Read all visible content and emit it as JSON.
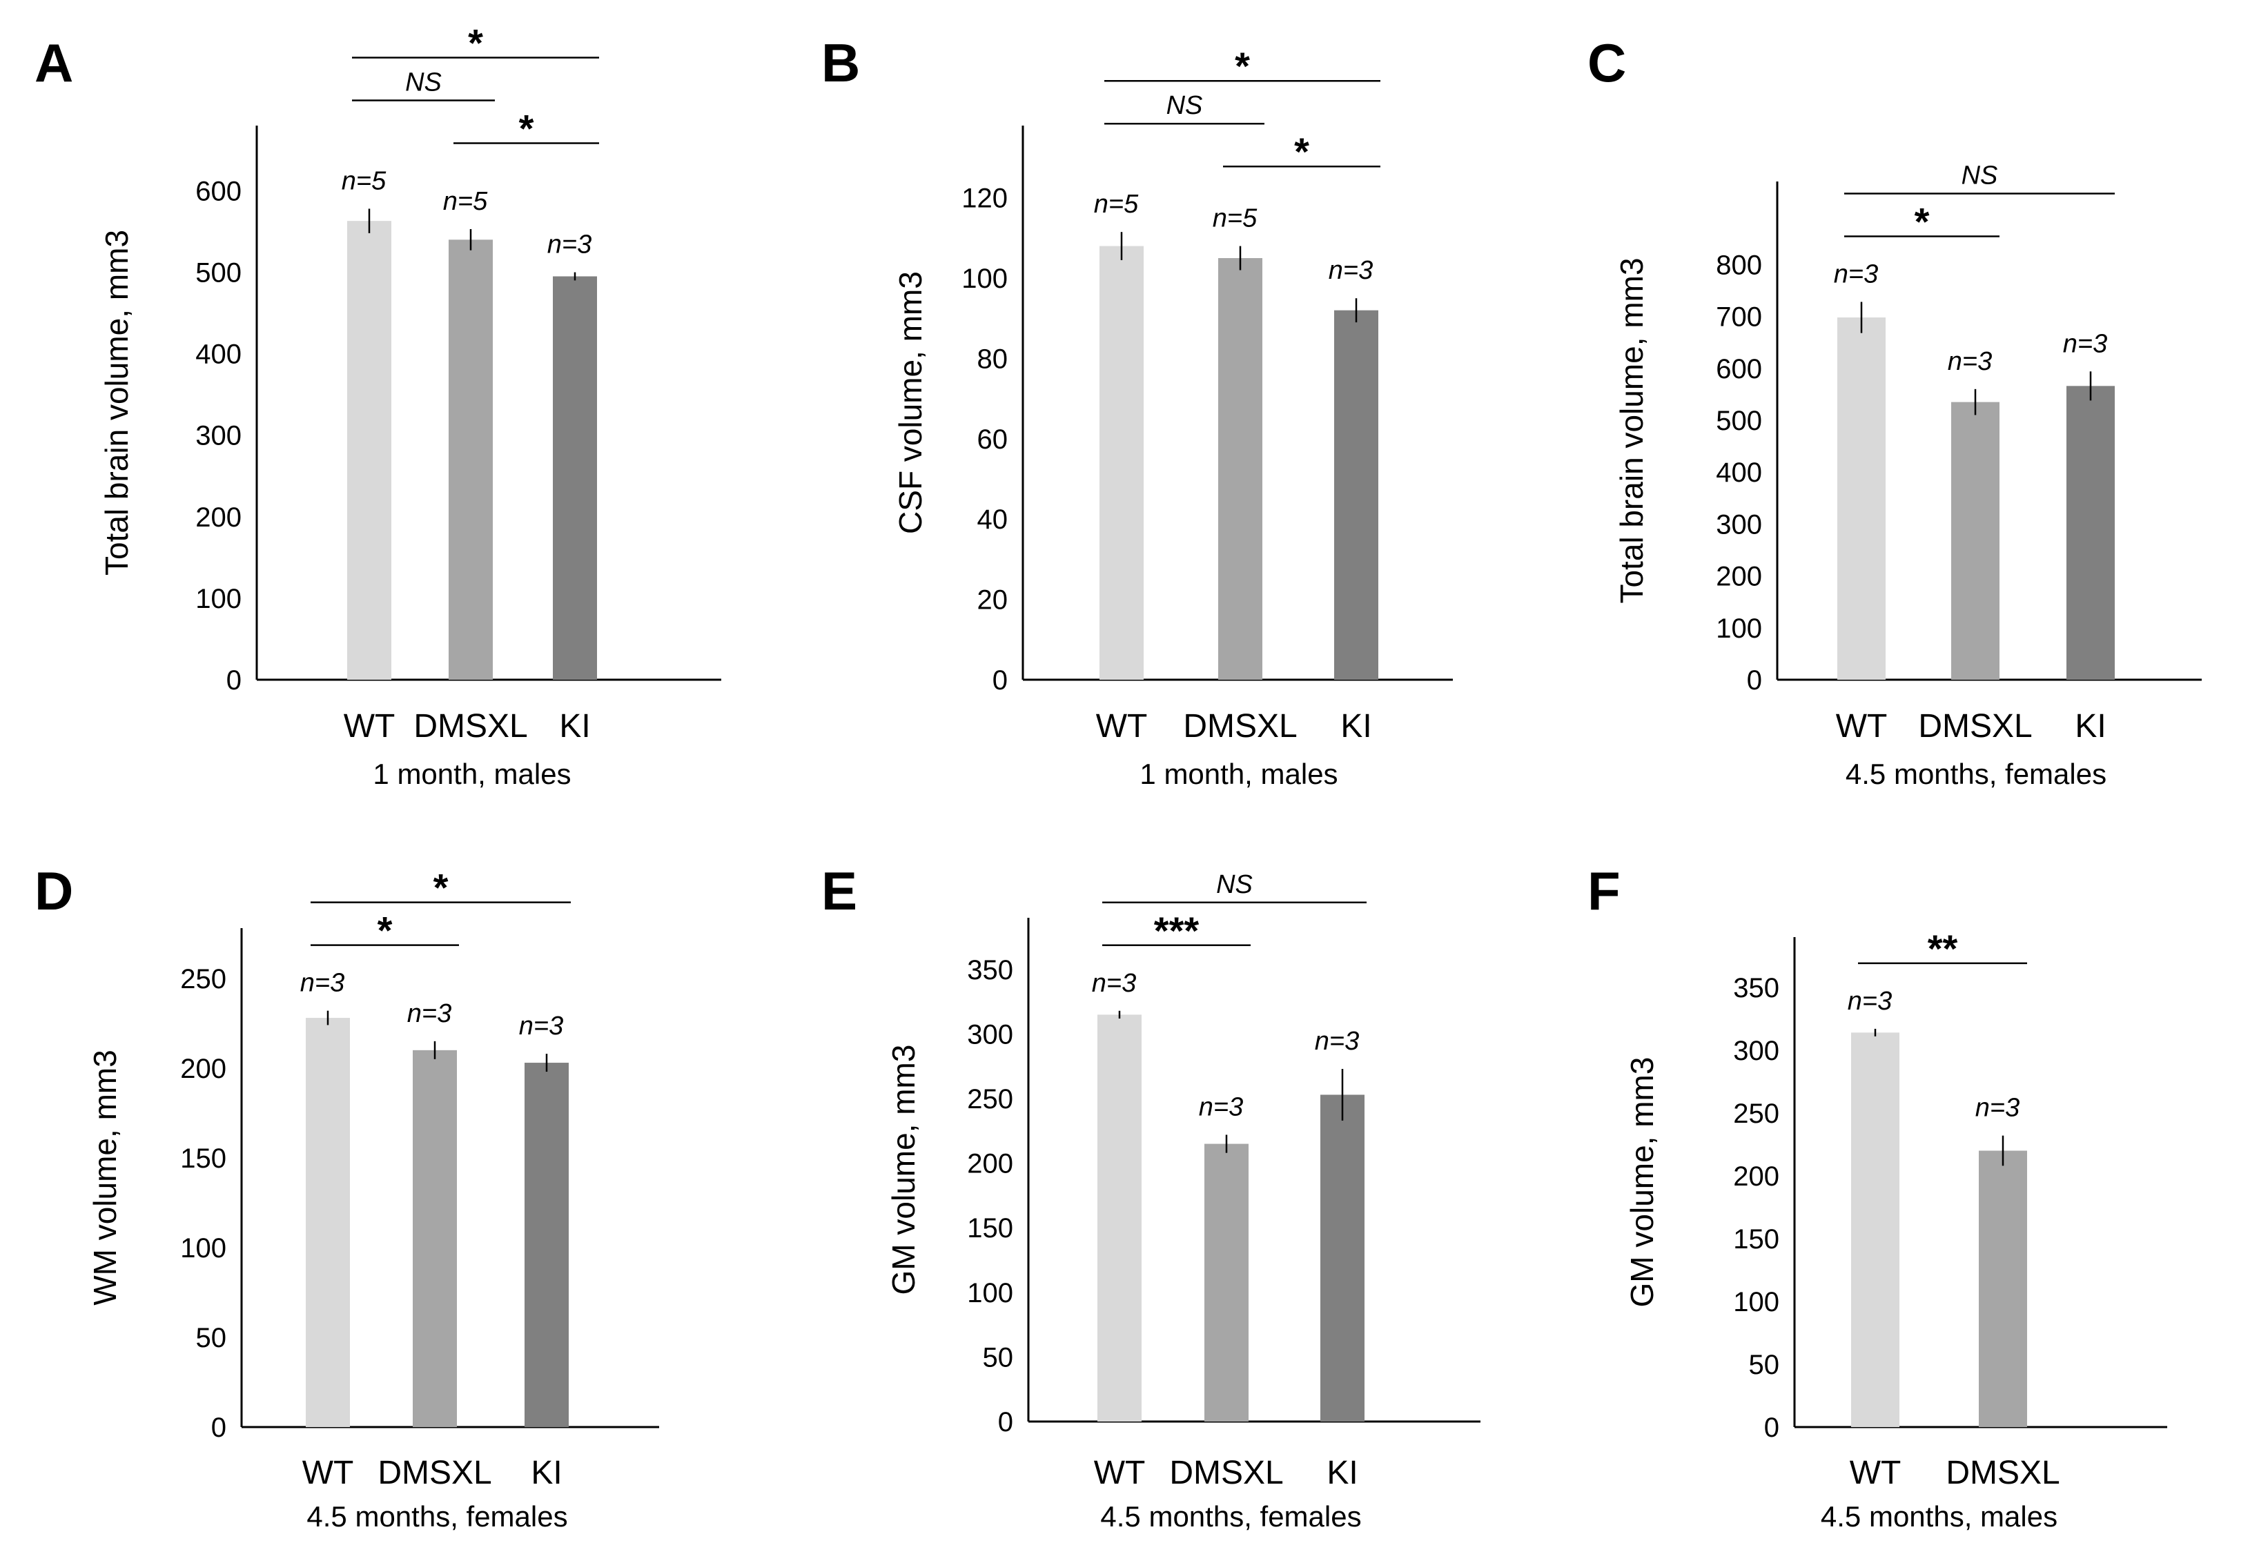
{
  "figure": {
    "colors": {
      "WT": "#d9d9d9",
      "DMSXL": "#a6a6a6",
      "KI": "#808080",
      "axis": "#000000"
    }
  },
  "chart_data": [
    {
      "type": "bar",
      "panel": "A",
      "categories": [
        "WT",
        "DMSXL",
        "KI"
      ],
      "values": [
        563,
        540,
        495
      ],
      "errors": [
        15,
        13,
        5
      ],
      "n_labels": [
        "n=5",
        "n=5",
        "n=3"
      ],
      "ylabel": "Total brain volume, mm3",
      "subtitle": "1 month, males",
      "ylim": [
        0,
        680
      ],
      "yticks": [
        0,
        100,
        200,
        300,
        400,
        500,
        600
      ],
      "comparisons": [
        {
          "from": 0,
          "to": 1,
          "label": "NS",
          "style": "ns",
          "level": 1
        },
        {
          "from": 1,
          "to": 2,
          "label": "*",
          "style": "sig",
          "level": 0
        },
        {
          "from": 0,
          "to": 2,
          "label": "*",
          "style": "sig",
          "level": 2
        }
      ]
    },
    {
      "type": "bar",
      "panel": "B",
      "categories": [
        "WT",
        "DMSXL",
        "KI"
      ],
      "values": [
        108,
        105,
        92
      ],
      "errors": [
        3.5,
        3,
        3
      ],
      "n_labels": [
        "n=5",
        "n=5",
        "n=3"
      ],
      "ylabel": "CSF volume, mm3",
      "subtitle": "1 month, males",
      "ylim": [
        0,
        138
      ],
      "yticks": [
        0,
        20,
        40,
        60,
        80,
        100,
        120
      ],
      "comparisons": [
        {
          "from": 0,
          "to": 1,
          "label": "NS",
          "style": "ns",
          "level": 1
        },
        {
          "from": 1,
          "to": 2,
          "label": "*",
          "style": "sig",
          "level": 0
        },
        {
          "from": 0,
          "to": 2,
          "label": "*",
          "style": "sig",
          "level": 2
        }
      ]
    },
    {
      "type": "bar",
      "panel": "C",
      "categories": [
        "WT",
        "DMSXL",
        "KI"
      ],
      "values": [
        698,
        535,
        566
      ],
      "errors": [
        30,
        25,
        28
      ],
      "n_labels": [
        "n=3",
        "n=3",
        "n=3"
      ],
      "ylabel": "Total brain volume, mm3",
      "subtitle": "4.5 months, females",
      "ylim": [
        0,
        960
      ],
      "yticks": [
        0,
        100,
        200,
        300,
        400,
        500,
        600,
        700,
        800
      ],
      "comparisons": [
        {
          "from": 0,
          "to": 1,
          "label": "*",
          "style": "sig",
          "level": 0
        },
        {
          "from": 0,
          "to": 2,
          "label": "NS",
          "style": "ns",
          "level": 1
        }
      ]
    },
    {
      "type": "bar",
      "panel": "D",
      "categories": [
        "WT",
        "DMSXL",
        "KI"
      ],
      "values": [
        228,
        210,
        203
      ],
      "errors": [
        4,
        5,
        5
      ],
      "n_labels": [
        "n=3",
        "n=3",
        "n=3"
      ],
      "ylabel": "WM volume, mm3",
      "subtitle": "4.5 months, females",
      "ylim": [
        0,
        278
      ],
      "yticks": [
        0,
        50,
        100,
        150,
        200,
        250
      ],
      "comparisons": [
        {
          "from": 0,
          "to": 1,
          "label": "*",
          "style": "sig",
          "level": 0
        },
        {
          "from": 0,
          "to": 2,
          "label": "*",
          "style": "sig",
          "level": 1
        }
      ]
    },
    {
      "type": "bar",
      "panel": "E",
      "categories": [
        "WT",
        "DMSXL",
        "KI"
      ],
      "values": [
        315,
        215,
        253
      ],
      "errors": [
        3,
        7,
        20
      ],
      "n_labels": [
        "n=3",
        "n=3",
        "n=3"
      ],
      "ylabel": "GM volume, mm3",
      "subtitle": "4.5 months, females",
      "ylim": [
        0,
        390
      ],
      "yticks": [
        0,
        50,
        100,
        150,
        200,
        250,
        300,
        350
      ],
      "comparisons": [
        {
          "from": 0,
          "to": 1,
          "label": "***",
          "style": "sig",
          "level": 0
        },
        {
          "from": 0,
          "to": 2,
          "label": "NS",
          "style": "ns",
          "level": 1
        }
      ]
    },
    {
      "type": "bar",
      "panel": "F",
      "categories": [
        "WT",
        "DMSXL"
      ],
      "values": [
        314,
        220
      ],
      "errors": [
        3,
        12
      ],
      "n_labels": [
        "n=3",
        "n=3"
      ],
      "ylabel": "GM volume, mm3",
      "subtitle": "4.5 months, males",
      "ylim": [
        0,
        390
      ],
      "yticks": [
        0,
        50,
        100,
        150,
        200,
        250,
        300,
        350
      ],
      "comparisons": [
        {
          "from": 0,
          "to": 1,
          "label": "**",
          "style": "sig",
          "level": 0
        }
      ]
    }
  ]
}
